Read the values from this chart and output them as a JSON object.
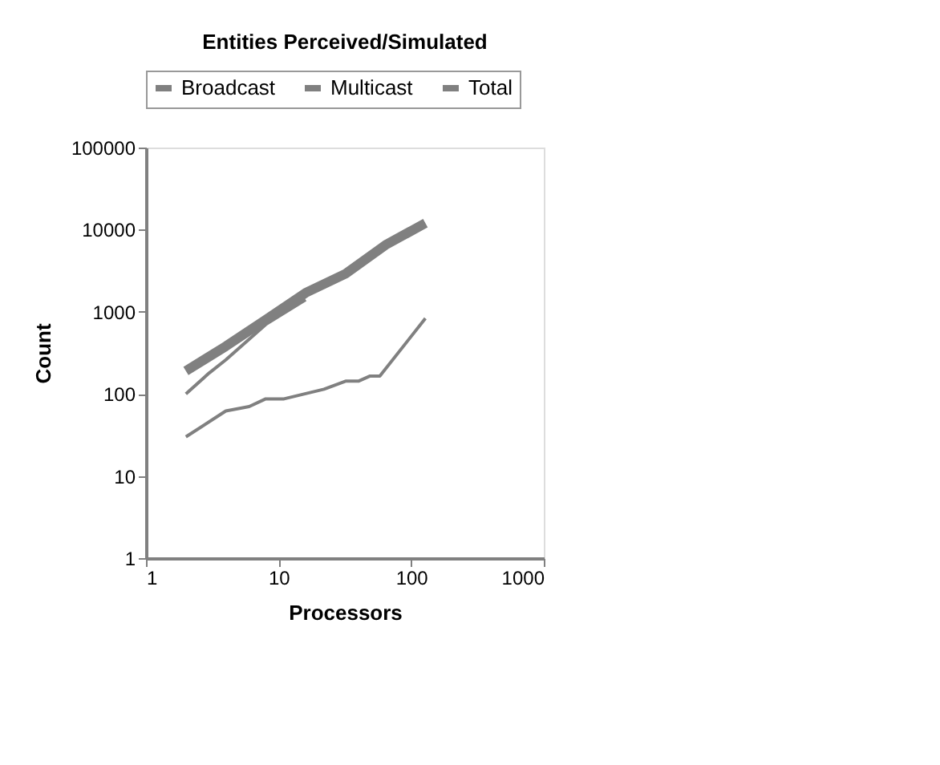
{
  "chart_data": {
    "type": "line",
    "title": "Entities    Perceived/Simulated",
    "xlabel": "Processors",
    "ylabel": "Count",
    "log": "xy",
    "xlim": [
      1,
      1000
    ],
    "xticks": [
      1,
      10,
      100,
      1000
    ],
    "ylim": [
      1,
      100000
    ],
    "yticks": [
      1,
      10,
      100,
      1000,
      10000,
      100000
    ],
    "grid": false,
    "legend": "top",
    "series": [
      {
        "name": "Broadcast",
        "color": "#808080",
        "x": [
          2,
          3,
          4,
          8,
          16
        ],
        "values": [
          100,
          180,
          260,
          700,
          1400
        ]
      },
      {
        "name": "Multicast",
        "color": "#808080",
        "x": [
          2,
          4,
          6,
          8,
          11,
          22,
          32,
          40,
          49,
          58,
          128
        ],
        "values": [
          30,
          62,
          70,
          87,
          87,
          114,
          143,
          143,
          165,
          165,
          830
        ]
      },
      {
        "name": "Total",
        "color": "#808080",
        "x": [
          2,
          4,
          8,
          16,
          32,
          64,
          128
        ],
        "values": [
          190,
          380,
          800,
          1700,
          2900,
          6500,
          12000
        ]
      }
    ]
  }
}
